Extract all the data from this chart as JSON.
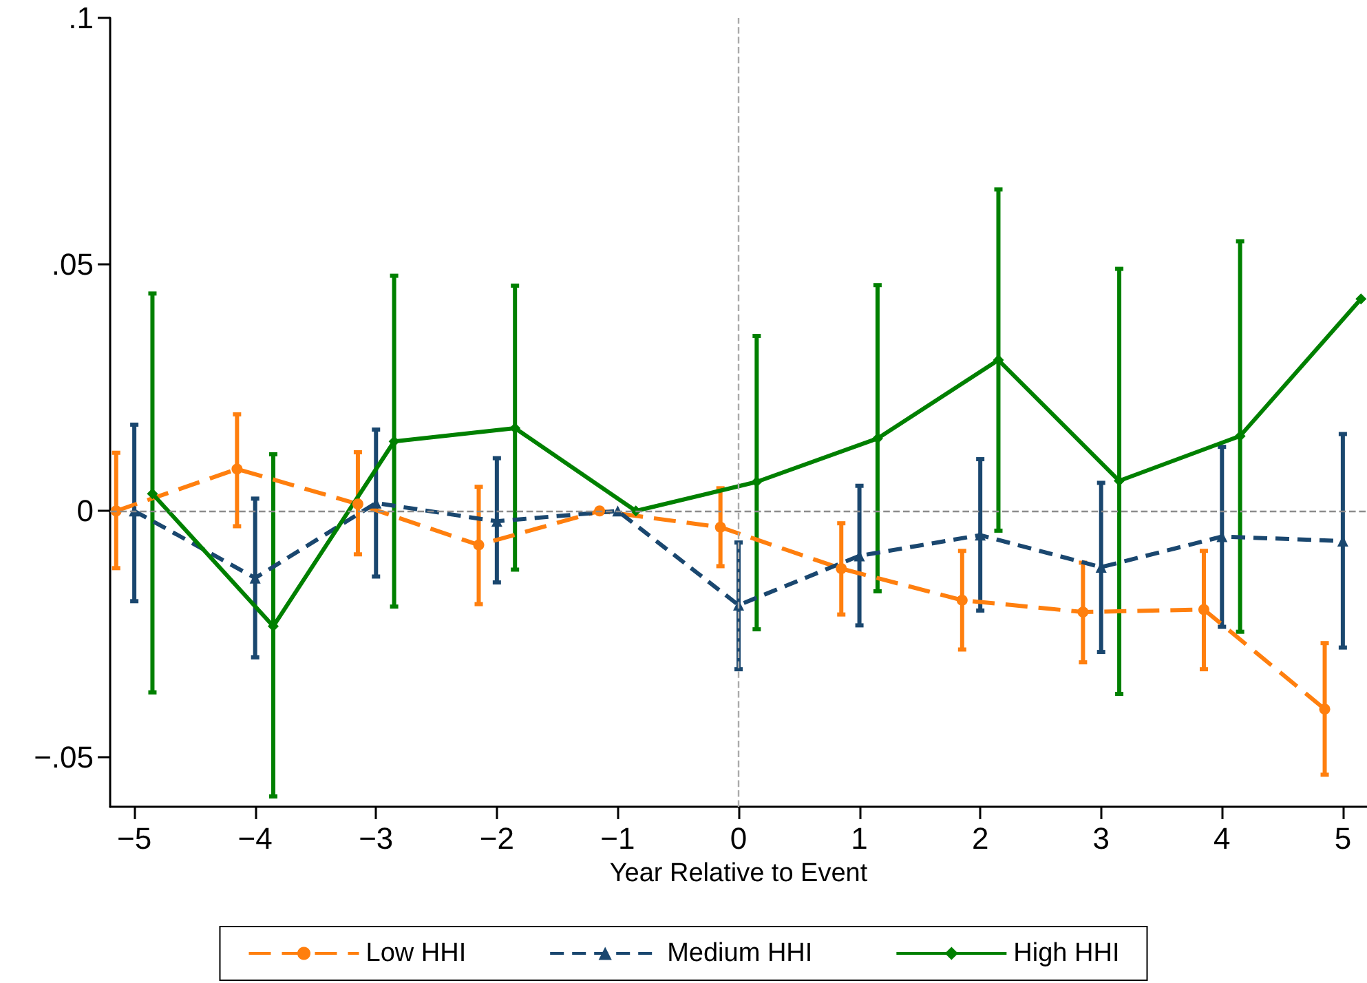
{
  "chart_data": {
    "type": "line",
    "xlabel": "Year Relative to Event",
    "xlim": [
      -5.2,
      5.2
    ],
    "xticks": [
      {
        "value": -5,
        "label": "−5"
      },
      {
        "value": -4,
        "label": "−4"
      },
      {
        "value": -3,
        "label": "−3"
      },
      {
        "value": -2,
        "label": "−2"
      },
      {
        "value": -1,
        "label": "−1"
      },
      0,
      1,
      2,
      3,
      4,
      5
    ],
    "ylim": [
      -0.06,
      0.1
    ],
    "yticks": [
      {
        "value": -0.05,
        "label": "−.05"
      },
      {
        "value": 0,
        "label": "0"
      },
      {
        "value": 0.05,
        "label": ".05"
      },
      {
        "value": 0.1,
        "label": ".1"
      }
    ],
    "grid": false,
    "legend": "bottom",
    "ref_lines": [
      {
        "axis": "y",
        "value": 0,
        "label": null,
        "color": "#8c8c8c",
        "line_style": "dashed"
      },
      {
        "axis": "x",
        "value": 0,
        "label": null,
        "color": "#aaaaaa",
        "line_style": "dashed"
      }
    ],
    "series": [
      {
        "name": "Low HHI",
        "color": "#ff7f0e",
        "marker": "circle",
        "line_style": "dashed",
        "x": [
          -5.15,
          -4.15,
          -3.15,
          -2.15,
          -1.15,
          -0.15,
          0.85,
          1.85,
          2.85,
          3.85,
          4.85
        ],
        "values": [
          0,
          0.0085,
          0.0014,
          -0.0069,
          0,
          -0.0033,
          -0.0117,
          -0.0181,
          -0.0205,
          -0.02,
          -0.0402
        ],
        "errors": [
          [
            -0.0116,
            0.0118
          ],
          [
            -0.0031,
            0.0196
          ],
          [
            -0.0088,
            0.0119
          ],
          [
            -0.0189,
            0.0049
          ],
          null,
          [
            -0.0112,
            0.0046
          ],
          [
            -0.021,
            -0.0025
          ],
          [
            -0.0281,
            -0.0081
          ],
          [
            -0.0307,
            -0.0105
          ],
          [
            -0.0321,
            -0.0081
          ],
          [
            -0.0535,
            -0.0268
          ]
        ]
      },
      {
        "name": "Medium HHI",
        "color": "#1a476f",
        "marker": "triangle",
        "line_style": "dashed",
        "x": [
          -5,
          -4,
          -3,
          -2,
          -1,
          0,
          1,
          2,
          3,
          4,
          5
        ],
        "values": [
          0,
          -0.0136,
          0.0016,
          -0.0021,
          0,
          -0.0191,
          -0.0091,
          -0.0049,
          -0.0114,
          -0.0052,
          -0.0061
        ],
        "errors": [
          [
            -0.0183,
            0.0175
          ],
          [
            -0.0297,
            0.0025
          ],
          [
            -0.0133,
            0.0165
          ],
          [
            -0.0145,
            0.0107
          ],
          null,
          [
            -0.0321,
            -0.0064
          ],
          [
            -0.0232,
            0.0051
          ],
          [
            -0.0202,
            0.0105
          ],
          [
            -0.0286,
            0.0057
          ],
          [
            -0.0235,
            0.013
          ],
          [
            -0.0277,
            0.0156
          ]
        ]
      },
      {
        "name": "High HHI",
        "color": "#008000",
        "marker": "diamond",
        "line_style": "solid",
        "x": [
          -4.85,
          -3.85,
          -2.85,
          -1.85,
          -0.85,
          0.15,
          1.15,
          2.15,
          3.15,
          4.15,
          5.15
        ],
        "values": [
          0.0035,
          -0.0234,
          0.0141,
          0.0168,
          0,
          0.0059,
          0.0147,
          0.0306,
          0.0061,
          0.0152,
          0.043
        ],
        "errors": [
          [
            -0.0368,
            0.0441
          ],
          [
            -0.0579,
            0.0115
          ],
          [
            -0.0194,
            0.0477
          ],
          [
            -0.0119,
            0.0457
          ],
          null,
          [
            -0.024,
            0.0355
          ],
          [
            -0.0163,
            0.0458
          ],
          [
            -0.004,
            0.0652
          ],
          [
            -0.0371,
            0.0491
          ],
          [
            -0.0245,
            0.0547
          ],
          null
        ]
      }
    ]
  }
}
